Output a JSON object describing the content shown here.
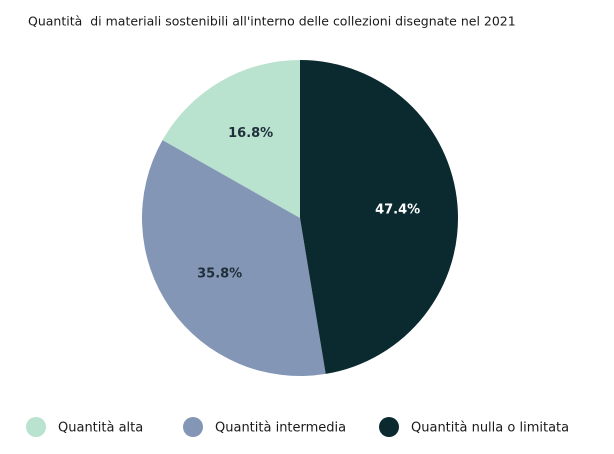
{
  "chart_data": {
    "type": "pie",
    "title": "Quantità  di materiali sostenibili all'interno delle collezioni disegnate nel 2021",
    "categories": [
      "Quantità alta",
      "Quantità intermedia",
      "Quantità nulla o limitata"
    ],
    "values": [
      16.8,
      35.8,
      47.4
    ],
    "value_labels": [
      "16.8%",
      "35.8%",
      "47.4%"
    ],
    "colors": [
      "#b9e2cf",
      "#8496b5",
      "#0b2a30"
    ],
    "legend": "bottom"
  }
}
